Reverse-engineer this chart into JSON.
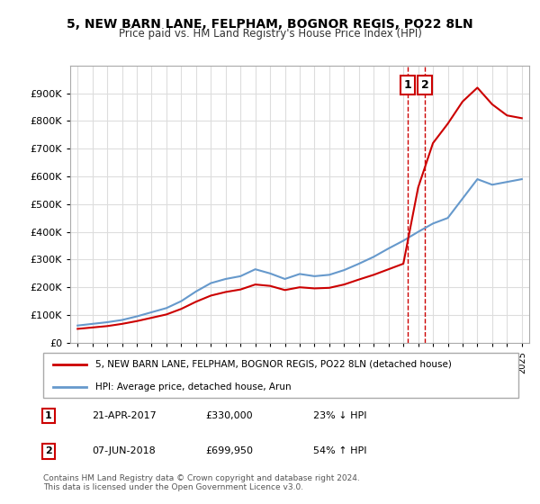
{
  "title": "5, NEW BARN LANE, FELPHAM, BOGNOR REGIS, PO22 8LN",
  "subtitle": "Price paid vs. HM Land Registry's House Price Index (HPI)",
  "legend_line1": "5, NEW BARN LANE, FELPHAM, BOGNOR REGIS, PO22 8LN (detached house)",
  "legend_line2": "HPI: Average price, detached house, Arun",
  "footnote": "Contains HM Land Registry data © Crown copyright and database right 2024.\nThis data is licensed under the Open Government Licence v3.0.",
  "property_color": "#cc0000",
  "hpi_color": "#6699cc",
  "marker1_label": "1",
  "marker2_label": "2",
  "marker1_date": "21-APR-2017",
  "marker1_price": "£330,000",
  "marker1_hpi": "23% ↓ HPI",
  "marker2_date": "07-JUN-2018",
  "marker2_price": "£699,950",
  "marker2_hpi": "54% ↑ HPI",
  "sale1_year": 2017.3,
  "sale1_value": 330000,
  "sale2_year": 2018.45,
  "sale2_value": 699950,
  "ylim": [
    0,
    1000000
  ],
  "yticks": [
    0,
    100000,
    200000,
    300000,
    400000,
    500000,
    600000,
    700000,
    800000,
    900000
  ],
  "ytick_labels": [
    "£0",
    "£100K",
    "£200K",
    "£300K",
    "£400K",
    "£500K",
    "£600K",
    "£700K",
    "£800K",
    "£900K"
  ],
  "hpi_years": [
    1995,
    1996,
    1997,
    1998,
    1999,
    2000,
    2001,
    2002,
    2003,
    2004,
    2005,
    2006,
    2007,
    2008,
    2009,
    2010,
    2011,
    2012,
    2013,
    2014,
    2015,
    2016,
    2017,
    2018,
    2019,
    2020,
    2021,
    2022,
    2023,
    2024,
    2025
  ],
  "hpi_values": [
    62000,
    68000,
    74000,
    82000,
    95000,
    110000,
    125000,
    150000,
    185000,
    215000,
    230000,
    240000,
    265000,
    250000,
    230000,
    248000,
    240000,
    245000,
    262000,
    285000,
    310000,
    340000,
    368000,
    400000,
    430000,
    450000,
    520000,
    590000,
    570000,
    580000,
    590000
  ],
  "prop_years": [
    1995,
    1996,
    1997,
    1998,
    1999,
    2000,
    2001,
    2002,
    2003,
    2004,
    2005,
    2006,
    2007,
    2008,
    2009,
    2010,
    2011,
    2012,
    2013,
    2014,
    2015,
    2016,
    2017,
    2018,
    2019,
    2020,
    2021,
    2022,
    2023,
    2024,
    2025
  ],
  "prop_values": [
    50000,
    55000,
    60000,
    68000,
    78000,
    90000,
    102000,
    122000,
    148000,
    170000,
    183000,
    192000,
    210000,
    205000,
    190000,
    200000,
    196000,
    198000,
    210000,
    228000,
    245000,
    265000,
    285000,
    560000,
    720000,
    790000,
    870000,
    920000,
    860000,
    820000,
    810000
  ],
  "xlim_min": 1994.5,
  "xlim_max": 2025.5,
  "xtick_years": [
    1995,
    1996,
    1997,
    1998,
    1999,
    2000,
    2001,
    2002,
    2003,
    2004,
    2005,
    2006,
    2007,
    2008,
    2009,
    2010,
    2011,
    2012,
    2013,
    2014,
    2015,
    2016,
    2017,
    2018,
    2019,
    2020,
    2021,
    2022,
    2023,
    2024,
    2025
  ],
  "bg_color": "#ffffff",
  "grid_color": "#dddddd"
}
